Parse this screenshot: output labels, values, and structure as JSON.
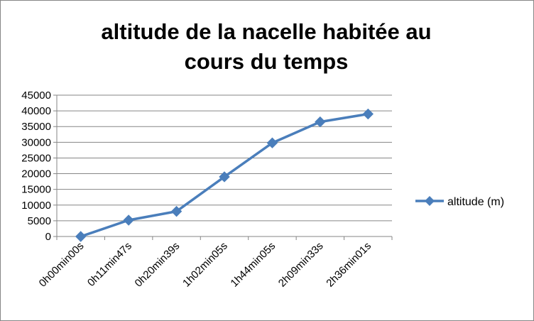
{
  "chart_data": {
    "type": "line",
    "title_lines": [
      "altitude de la nacelle habitée au",
      "cours du temps"
    ],
    "categories": [
      "0h00min00s",
      "0h11min47s",
      "0h20min39s",
      "1h02min05s",
      "1h44min05s",
      "2h09min33s",
      "2h36min01s"
    ],
    "series": [
      {
        "name": "altitude (m)",
        "values": [
          0,
          5200,
          8000,
          19000,
          29800,
          36500,
          39000
        ],
        "color": "#4a7ebb"
      }
    ],
    "y_ticks": [
      "0",
      "5000",
      "10000",
      "15000",
      "20000",
      "25000",
      "30000",
      "35000",
      "40000",
      "45000"
    ],
    "ylim": [
      0,
      45000
    ],
    "grid": "horizontal",
    "legend_position": "right",
    "marker": "diamond"
  }
}
